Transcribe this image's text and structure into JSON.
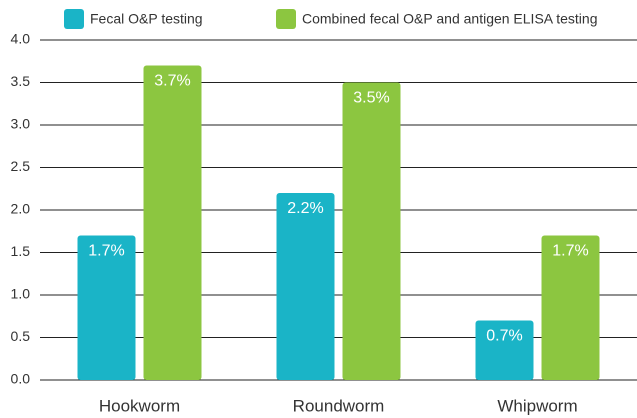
{
  "chart_data": {
    "type": "bar",
    "categories": [
      "Hookworm",
      "Roundworm",
      "Whipworm"
    ],
    "series": [
      {
        "name": "Fecal O&P testing",
        "color": "#1ab4c7",
        "values": [
          1.7,
          2.2,
          0.7
        ],
        "value_labels": [
          "1.7%",
          "2.2%",
          "0.7%"
        ]
      },
      {
        "name": "Combined fecal O&P and antigen ELISA testing",
        "color": "#8cc640",
        "values": [
          3.7,
          3.5,
          1.7
        ],
        "value_labels": [
          "3.7%",
          "3.5%",
          "1.7%"
        ]
      }
    ],
    "ylim": [
      0,
      4
    ],
    "yticks": [
      {
        "value": 0,
        "label": "0.0"
      },
      0.5,
      {
        "value": 1,
        "label": "1.0"
      },
      1.5,
      {
        "value": 2,
        "label": "2.0"
      },
      2.5,
      {
        "value": 3,
        "label": "3.0"
      },
      3.5,
      {
        "value": 4,
        "label": "4.0"
      }
    ],
    "grid": true,
    "legend": "top"
  }
}
